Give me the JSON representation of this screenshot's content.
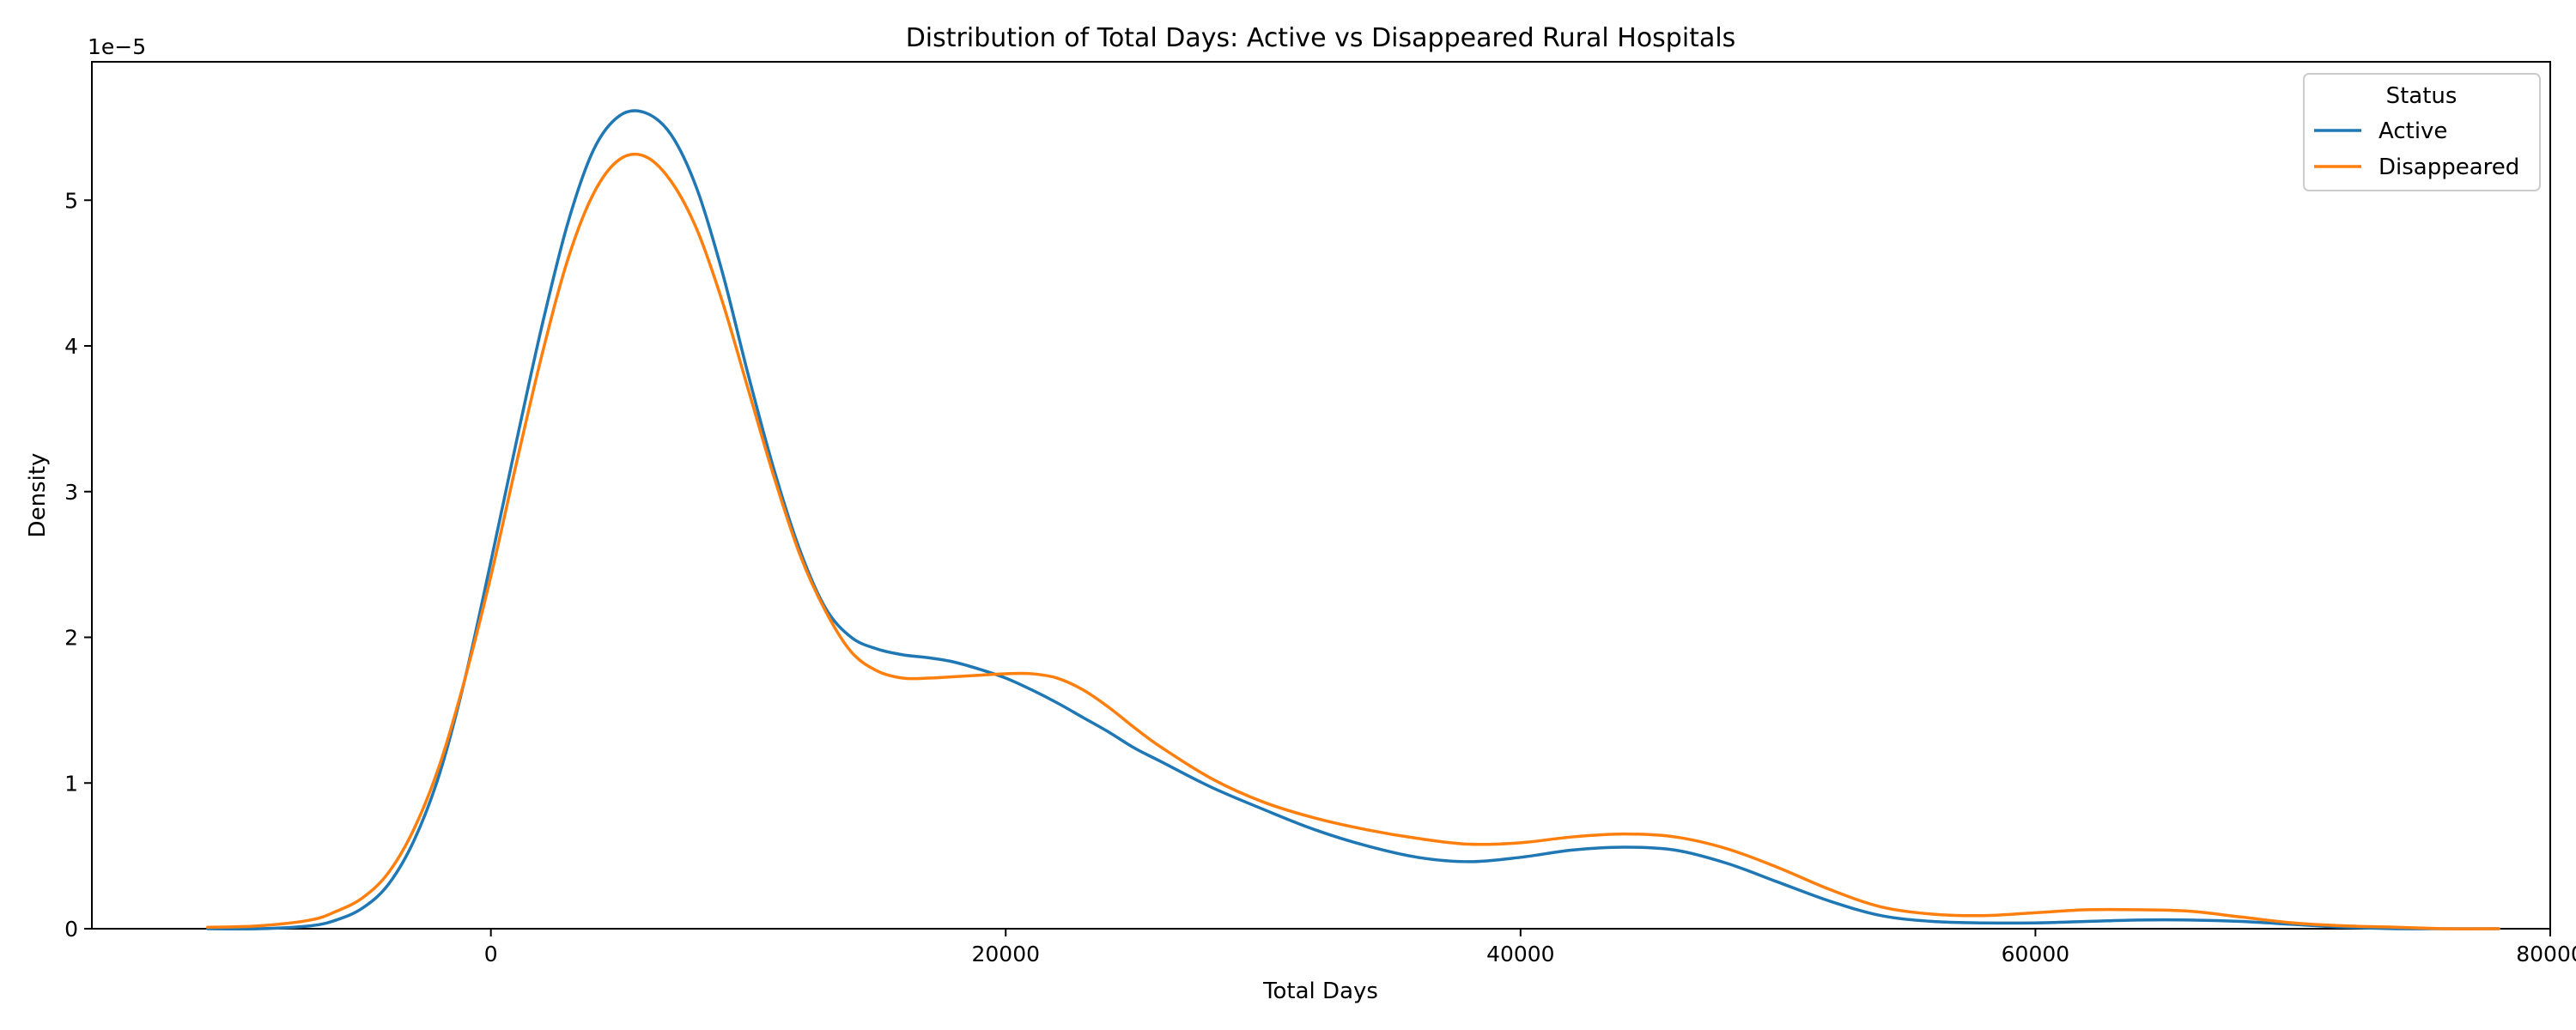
{
  "chart_data": {
    "type": "line",
    "title": "Distribution of Total Days: Active vs Disappeared Rural Hospitals",
    "xlabel": "Total Days",
    "ylabel": "Density",
    "y_scale_label": "1e−5",
    "xlim": [
      -15500,
      80000
    ],
    "ylim": [
      0,
      5.95
    ],
    "x_ticks": [
      0,
      20000,
      40000,
      60000,
      80000
    ],
    "x_tick_labels": [
      "0",
      "20000",
      "40000",
      "60000",
      "80000"
    ],
    "y_ticks": [
      0,
      1,
      2,
      3,
      4,
      5
    ],
    "y_tick_labels": [
      "0",
      "1",
      "2",
      "3",
      "4",
      "5"
    ],
    "grid": false,
    "legend": {
      "title": "Status",
      "placement": "top-right"
    },
    "x": [
      -11000,
      -9000,
      -7000,
      -6000,
      -5000,
      -4000,
      -3000,
      -2000,
      -1000,
      0,
      1000,
      2000,
      3000,
      4000,
      5000,
      6000,
      7000,
      8000,
      9000,
      10000,
      11000,
      12000,
      13000,
      14000,
      15000,
      16000,
      17000,
      18000,
      19000,
      20000,
      21000,
      22000,
      23000,
      24000,
      25000,
      26000,
      28000,
      30000,
      32000,
      34000,
      36000,
      38000,
      40000,
      42000,
      44000,
      46000,
      48000,
      50000,
      52000,
      54000,
      56000,
      58000,
      60000,
      62000,
      64000,
      66000,
      68000,
      70000,
      72000,
      74000,
      76000,
      78000
    ],
    "series": [
      {
        "name": "Active",
        "color": "#1f77b4",
        "values": [
          0.0,
          0.0,
          0.02,
          0.06,
          0.14,
          0.3,
          0.6,
          1.06,
          1.72,
          2.52,
          3.35,
          4.15,
          4.85,
          5.35,
          5.58,
          5.6,
          5.45,
          5.08,
          4.5,
          3.8,
          3.15,
          2.6,
          2.2,
          2.0,
          1.92,
          1.88,
          1.86,
          1.83,
          1.78,
          1.72,
          1.64,
          1.55,
          1.45,
          1.35,
          1.24,
          1.15,
          0.97,
          0.82,
          0.68,
          0.57,
          0.49,
          0.46,
          0.49,
          0.54,
          0.56,
          0.54,
          0.45,
          0.32,
          0.19,
          0.09,
          0.05,
          0.04,
          0.04,
          0.05,
          0.06,
          0.06,
          0.05,
          0.03,
          0.01,
          0.0,
          0.0,
          0.0
        ]
      },
      {
        "name": "Disappeared",
        "color": "#ff7f0e",
        "values": [
          0.01,
          0.02,
          0.06,
          0.12,
          0.21,
          0.38,
          0.68,
          1.12,
          1.72,
          2.42,
          3.2,
          3.95,
          4.6,
          5.05,
          5.28,
          5.3,
          5.13,
          4.8,
          4.3,
          3.7,
          3.1,
          2.57,
          2.18,
          1.9,
          1.77,
          1.72,
          1.72,
          1.73,
          1.74,
          1.75,
          1.75,
          1.72,
          1.64,
          1.52,
          1.38,
          1.25,
          1.03,
          0.87,
          0.76,
          0.68,
          0.62,
          0.58,
          0.59,
          0.63,
          0.65,
          0.63,
          0.55,
          0.42,
          0.27,
          0.15,
          0.1,
          0.09,
          0.11,
          0.13,
          0.13,
          0.12,
          0.08,
          0.04,
          0.02,
          0.01,
          0.0,
          0.0
        ]
      }
    ]
  }
}
